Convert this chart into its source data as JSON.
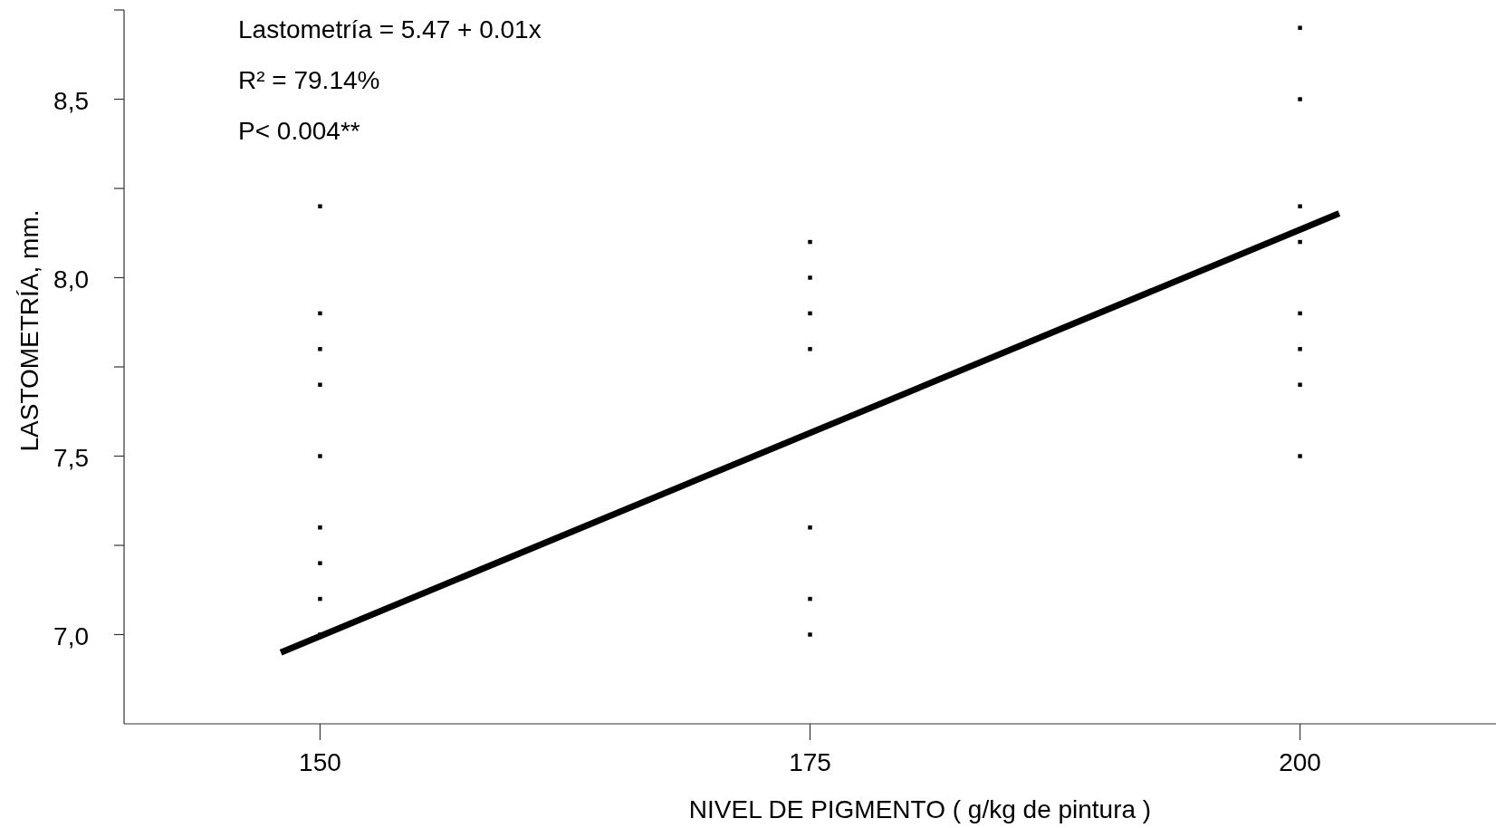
{
  "chart_data": {
    "type": "scatter",
    "xlabel": "NIVEL DE PIGMENTO ( g/kg de pintura )",
    "ylabel": "LASTOMETRÍA, mm.",
    "annotations": [
      "Lastometría = 5.47 + 0.01x",
      "R² = 79.14%",
      "P< 0.004**"
    ],
    "xlim": [
      140,
      210
    ],
    "xticks": [
      150,
      175,
      200
    ],
    "ylim": [
      6.75,
      8.75
    ],
    "yticks": [
      {
        "value": 7,
        "label": "7,0"
      },
      {
        "value": 7.25,
        "label": null
      },
      {
        "value": 7.5,
        "label": "7,5"
      },
      {
        "value": 7.75,
        "label": null
      },
      {
        "value": 8,
        "label": "8,0"
      },
      {
        "value": 8.25,
        "label": null
      },
      {
        "value": 8.5,
        "label": "8,5"
      },
      {
        "value": 8.75,
        "label": null
      }
    ],
    "grid": false,
    "series": [
      {
        "color": "#000000",
        "marker": "square",
        "x": [
          150,
          150,
          150,
          150,
          150,
          150,
          150,
          150,
          150,
          175,
          175,
          175,
          175,
          175,
          175,
          175,
          200,
          200,
          200,
          200,
          200,
          200,
          200,
          200
        ],
        "values": [
          8.2,
          7.9,
          7.8,
          7.7,
          7.5,
          7.3,
          7.2,
          7.1,
          7.0,
          8.1,
          8.0,
          7.9,
          7.8,
          7.3,
          7.1,
          7.0,
          8.7,
          8.5,
          8.2,
          8.1,
          7.9,
          7.8,
          7.7,
          7.5
        ]
      },
      {
        "type": "line",
        "color": "#000000",
        "line_style": "solid",
        "x": [
          148,
          202
        ],
        "values": [
          6.95,
          8.18
        ]
      }
    ]
  }
}
